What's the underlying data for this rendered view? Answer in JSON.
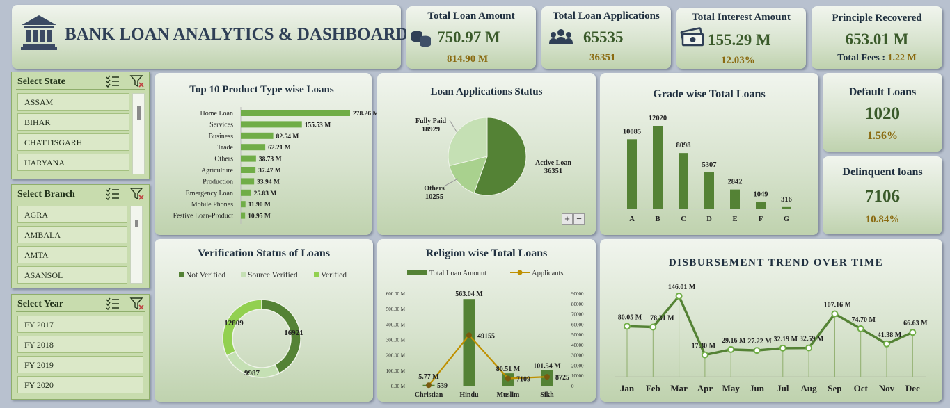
{
  "header": {
    "title": "BANK LOAN ANALYTICS & DASHBOARD",
    "icon": "bank-icon"
  },
  "kpis": {
    "total_loan_amount": {
      "title": "Total Loan Amount",
      "value": "750.97 M",
      "sub": "814.90 M",
      "icon": "coins-icon"
    },
    "total_loan_applications": {
      "title": "Total Loan Applications",
      "value": "65535",
      "sub": "36351",
      "icon": "people-icon"
    },
    "total_interest_amount": {
      "title": "Total Interest Amount",
      "value": "155.29 M",
      "sub": "12.03%",
      "icon": "cash-icon"
    },
    "principle_recovered": {
      "title": "Principle Recovered",
      "value": "653.01 M",
      "sub_label": "Total Fees : ",
      "sub_value": "1.22 M"
    },
    "default_loans": {
      "title": "Default Loans",
      "value": "1020",
      "sub": "1.56%"
    },
    "delinquent_loans": {
      "title": "Delinquent loans",
      "value": "7106",
      "sub": "10.84%"
    }
  },
  "slicers": {
    "state": {
      "title": "Select State",
      "items": [
        "ASSAM",
        "BIHAR",
        "CHATTISGARH",
        "HARYANA"
      ]
    },
    "branch": {
      "title": "Select Branch",
      "items": [
        "AGRA",
        "AMBALA",
        "AMTA",
        "ASANSOL"
      ]
    },
    "year": {
      "title": "Select Year",
      "items": [
        "FY 2017",
        "FY 2018",
        "FY 2019",
        "FY 2020"
      ]
    }
  },
  "colors": {
    "green_dark": "#548235",
    "green_mid": "#70ad47",
    "green_light": "#a9d18e",
    "green_pale": "#c5e0b4",
    "gold": "#bf9000"
  },
  "chart_data": [
    {
      "id": "product",
      "type": "bar",
      "orientation": "horizontal",
      "title": "Top 10 Product Type wise Loans",
      "categories": [
        "Home Loan",
        "Services",
        "Business",
        "Trade",
        "Others",
        "Agriculture",
        "Production",
        "Emergency Loan",
        "Mobile Phones",
        "Festive Loan-Product"
      ],
      "values": [
        278.26,
        155.53,
        82.54,
        62.21,
        38.73,
        37.47,
        33.94,
        25.83,
        11.9,
        10.95
      ],
      "labels": [
        "278.26 M",
        "155.53 M",
        "82.54 M",
        "62.21 M",
        "38.73 M",
        "37.47 M",
        "33.94 M",
        "25.83 M",
        "11.90 M",
        "10.95 M"
      ]
    },
    {
      "id": "status",
      "type": "pie",
      "title": "Loan Applications Status",
      "categories": [
        "Active Loan",
        "Others",
        "Fully Paid"
      ],
      "values": [
        36351,
        10255,
        18929
      ],
      "labels": [
        "36351",
        "10255",
        "18929"
      ],
      "zoom_buttons": [
        "+",
        "−"
      ]
    },
    {
      "id": "grade",
      "type": "bar",
      "title": "Grade wise Total Loans",
      "categories": [
        "A",
        "B",
        "C",
        "D",
        "E",
        "F",
        "G"
      ],
      "values": [
        10085,
        12020,
        8098,
        5307,
        2842,
        1049,
        316
      ],
      "labels": [
        "10085",
        "12020",
        "8098",
        "5307",
        "2842",
        "1049",
        "316"
      ]
    },
    {
      "id": "verification",
      "type": "pie",
      "title": "Verification Status of Loans",
      "categories": [
        "Not Verified",
        "Source Verified",
        "Verified"
      ],
      "values": [
        16921,
        9987,
        12809
      ],
      "labels": [
        "16921",
        "9987",
        "12809"
      ],
      "legend": "top"
    },
    {
      "id": "religion",
      "type": "bar",
      "title": "Religion wise Total Loans",
      "categories": [
        "Christian",
        "Hindu",
        "Muslim",
        "Sikh"
      ],
      "series": [
        {
          "name": "Total Loan Amount",
          "type": "bar",
          "values": [
            5.77,
            563.04,
            80.51,
            101.54
          ],
          "labels": [
            "5.77 M",
            "563.04 M",
            "80.51 M",
            "101.54 M"
          ]
        },
        {
          "name": "Applicants",
          "type": "line",
          "values": [
            539,
            49155,
            7109,
            8725
          ],
          "labels": [
            "539",
            "49155",
            "7109",
            "8725"
          ]
        }
      ],
      "ylim": [
        0,
        600
      ],
      "yticks": [
        "0.00 M",
        "100.00 M",
        "200.00 M",
        "300.00 M",
        "400.00 M",
        "500.00 M",
        "600.00 M"
      ],
      "y2lim": [
        0,
        90000
      ],
      "y2ticks": [
        "0",
        "10000",
        "20000",
        "30000",
        "40000",
        "50000",
        "60000",
        "70000",
        "80000",
        "90000"
      ],
      "legend": "top"
    },
    {
      "id": "disbursement",
      "type": "line",
      "title": "DISBURSEMENT TREND OVER TIME",
      "categories": [
        "Jan",
        "Feb",
        "Mar",
        "Apr",
        "May",
        "Jun",
        "Jul",
        "Aug",
        "Sep",
        "Oct",
        "Nov",
        "Dec"
      ],
      "values": [
        80.05,
        78.31,
        146.01,
        17.3,
        29.16,
        27.22,
        32.19,
        32.59,
        107.16,
        74.7,
        41.38,
        66.63
      ],
      "labels": [
        "80.05 M",
        "78.31 M",
        "146.01 M",
        "17.30 M",
        "29.16 M",
        "27.22 M",
        "32.19 M",
        "32.59 M",
        "107.16 M",
        "74.70 M",
        "41.38 M",
        "66.63 M"
      ]
    }
  ]
}
